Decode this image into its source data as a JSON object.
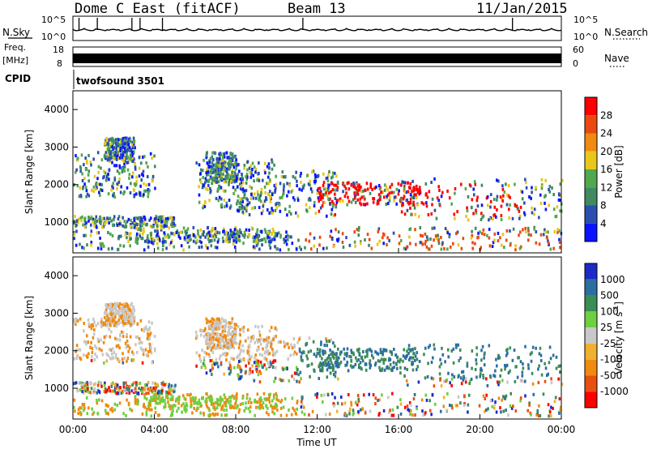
{
  "header": {
    "left_title": "Dome C East (fitACF)",
    "center_title": "Beam 13",
    "right_title": "11/Jan/2015"
  },
  "status_panels": {
    "nsky_label": "N.Sky",
    "nsky_ticks": [
      "10^5",
      "10^0"
    ],
    "nsearch_label": "N.Search",
    "nsearch_ticks": [
      "10^5",
      "10^0"
    ],
    "freq_label_1": "Freq.",
    "freq_label_2": "[MHz]",
    "freq_ticks": [
      "18",
      "8"
    ],
    "nave_label": "Nave",
    "nave_ticks": [
      "60",
      "0"
    ],
    "cpid_label": "CPID",
    "cpid_value": "twofsound 3501"
  },
  "colors": {
    "power_scale": [
      "#0a14ff",
      "#2a4fb0",
      "#3f8a62",
      "#52a84c",
      "#e8c71a",
      "#f08a10",
      "#ea4a10",
      "#ff0000"
    ],
    "velocity_scale": [
      "#ff0000",
      "#e85010",
      "#f08a10",
      "#f0b030",
      "#c8c8c8",
      "#6cd040",
      "#3c8c56",
      "#2c6ea0",
      "#1c2ac8"
    ]
  },
  "chart_data": [
    {
      "type": "heatmap",
      "name": "power",
      "xlabel": "Time UT",
      "ylabel": "Slant Range [km]",
      "xlim": [
        0,
        24
      ],
      "ylim": [
        180,
        4500
      ],
      "x_ticks": [
        "00:00",
        "04:00",
        "08:00",
        "12:00",
        "16:00",
        "20:00",
        "00:00"
      ],
      "y_ticks": [
        "1000",
        "2000",
        "3000",
        "4000"
      ],
      "colorbar_label": "Power [dB]",
      "colorbar_ticks": [
        "4",
        "8",
        "12",
        "16",
        "20",
        "24",
        "28"
      ],
      "colorbar_range": [
        0,
        32
      ]
    },
    {
      "type": "heatmap",
      "name": "velocity",
      "xlabel": "Time UT",
      "ylabel": "Slant Range [km]",
      "xlim": [
        0,
        24
      ],
      "ylim": [
        180,
        4500
      ],
      "x_ticks": [
        "00:00",
        "04:00",
        "08:00",
        "12:00",
        "16:00",
        "20:00",
        "00:00"
      ],
      "y_ticks": [
        "1000",
        "2000",
        "3000",
        "4000"
      ],
      "colorbar_label": "Velocity [m s",
      "colorbar_label_sup": "-1",
      "colorbar_label_end": "]",
      "colorbar_ticks": [
        "1000",
        "500",
        "100",
        "25",
        "-25",
        "-100",
        "-500",
        "-1000"
      ]
    }
  ]
}
